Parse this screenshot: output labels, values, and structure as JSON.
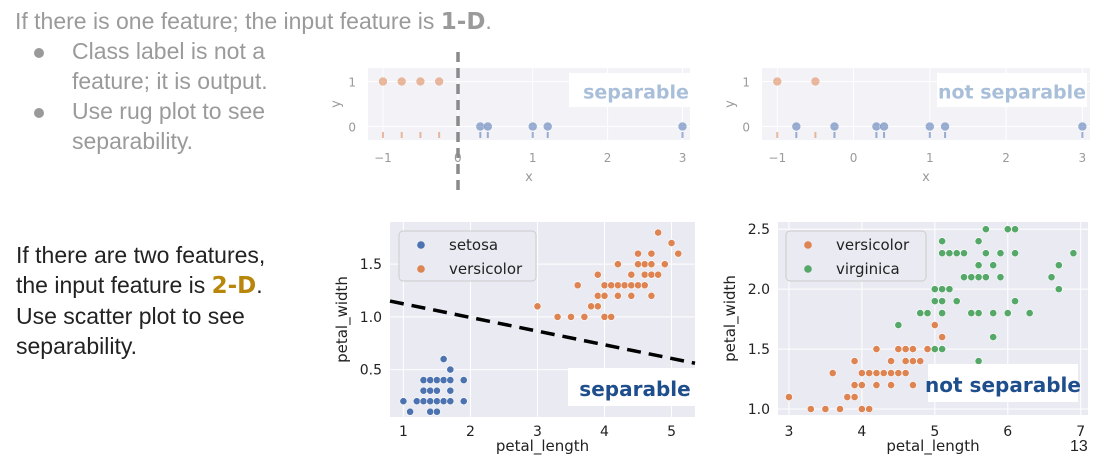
{
  "text": {
    "line1_prefix": "If there is one feature; the input feature is ",
    "line1_highlight": "1-D",
    "line1_suffix": ".",
    "bullets": [
      "Class label is not a feature; it is output.",
      "Use rug plot to see separability."
    ],
    "two_line_a": "If there are two features,",
    "two_line_b_prefix": "the input feature is ",
    "two_line_b_highlight": "2-D",
    "two_line_b_suffix": ".",
    "two_line_c": "Use scatter plot to see",
    "two_line_d": "separability.",
    "page_number": "13"
  },
  "colors": {
    "blue": "#4c72b0",
    "orange": "#dd8452",
    "green": "#55a868",
    "panel_bg": "#eaeaf2",
    "label_blue": "#1f4e8c"
  },
  "chart_data": [
    {
      "type": "scatter",
      "xlabel": "x",
      "ylabel": "y",
      "xlim": [
        -1.2,
        3.1
      ],
      "ylim": [
        -0.3,
        1.3
      ],
      "xticks": [
        "−1",
        "0",
        "1",
        "2",
        "3"
      ],
      "yticks": [
        "0",
        "1"
      ],
      "annotation": "separable",
      "rug": true,
      "series": [
        {
          "color": "orange",
          "points": [
            [
              -1,
              1
            ],
            [
              -0.75,
              1
            ],
            [
              -0.5,
              1
            ],
            [
              -0.25,
              1
            ]
          ]
        },
        {
          "color": "blue",
          "points": [
            [
              0.3,
              0
            ],
            [
              0.4,
              0
            ],
            [
              1.0,
              0
            ],
            [
              1.2,
              0
            ],
            [
              3.0,
              0
            ]
          ]
        }
      ]
    },
    {
      "type": "scatter",
      "xlabel": "x",
      "ylabel": "y",
      "xlim": [
        -1.2,
        3.1
      ],
      "ylim": [
        -0.3,
        1.3
      ],
      "xticks": [
        "−1",
        "0",
        "1",
        "2",
        "3"
      ],
      "yticks": [
        "0",
        "1"
      ],
      "annotation": "not separable",
      "rug": true,
      "series": [
        {
          "color": "orange",
          "points": [
            [
              -1,
              1
            ],
            [
              -0.5,
              1
            ]
          ]
        },
        {
          "color": "blue",
          "points": [
            [
              -0.75,
              0
            ],
            [
              -0.25,
              0
            ],
            [
              0.3,
              0
            ],
            [
              0.4,
              0
            ],
            [
              1.0,
              0
            ],
            [
              1.2,
              0
            ],
            [
              3.0,
              0
            ]
          ]
        }
      ]
    },
    {
      "type": "scatter",
      "xlabel": "petal_length",
      "ylabel": "petal_width",
      "xlim": [
        0.8,
        5.35
      ],
      "ylim": [
        0.05,
        1.9
      ],
      "xticks": [
        "1",
        "2",
        "3",
        "4",
        "5"
      ],
      "yticks": [
        "0.5",
        "1.0",
        "1.5"
      ],
      "legend": "top-left",
      "annotation": "separable",
      "decision_line": [
        [
          0.8,
          1.15
        ],
        [
          5.35,
          0.56
        ]
      ],
      "series": [
        {
          "name": "setosa",
          "color": "blue",
          "points": [
            [
              1.0,
              0.2
            ],
            [
              1.1,
              0.1
            ],
            [
              1.2,
              0.2
            ],
            [
              1.3,
              0.2
            ],
            [
              1.3,
              0.3
            ],
            [
              1.3,
              0.4
            ],
            [
              1.4,
              0.1
            ],
            [
              1.4,
              0.2
            ],
            [
              1.4,
              0.3
            ],
            [
              1.4,
              0.4
            ],
            [
              1.5,
              0.1
            ],
            [
              1.5,
              0.2
            ],
            [
              1.5,
              0.3
            ],
            [
              1.5,
              0.4
            ],
            [
              1.6,
              0.2
            ],
            [
              1.6,
              0.4
            ],
            [
              1.6,
              0.6
            ],
            [
              1.7,
              0.2
            ],
            [
              1.7,
              0.3
            ],
            [
              1.7,
              0.4
            ],
            [
              1.7,
              0.5
            ],
            [
              1.9,
              0.2
            ],
            [
              1.9,
              0.4
            ]
          ]
        },
        {
          "name": "versicolor",
          "color": "orange",
          "points": [
            [
              3.0,
              1.1
            ],
            [
              3.3,
              1.0
            ],
            [
              3.5,
              1.0
            ],
            [
              3.6,
              1.3
            ],
            [
              3.7,
              1.0
            ],
            [
              3.8,
              1.1
            ],
            [
              3.9,
              1.1
            ],
            [
              3.9,
              1.2
            ],
            [
              3.9,
              1.4
            ],
            [
              4.0,
              1.0
            ],
            [
              4.0,
              1.2
            ],
            [
              4.0,
              1.3
            ],
            [
              4.1,
              1.0
            ],
            [
              4.1,
              1.3
            ],
            [
              4.2,
              1.2
            ],
            [
              4.2,
              1.3
            ],
            [
              4.2,
              1.5
            ],
            [
              4.3,
              1.3
            ],
            [
              4.4,
              1.2
            ],
            [
              4.4,
              1.3
            ],
            [
              4.4,
              1.4
            ],
            [
              4.5,
              1.3
            ],
            [
              4.5,
              1.5
            ],
            [
              4.5,
              1.6
            ],
            [
              4.6,
              1.3
            ],
            [
              4.6,
              1.4
            ],
            [
              4.6,
              1.5
            ],
            [
              4.7,
              1.2
            ],
            [
              4.7,
              1.4
            ],
            [
              4.7,
              1.5
            ],
            [
              4.7,
              1.6
            ],
            [
              4.8,
              1.4
            ],
            [
              4.8,
              1.8
            ],
            [
              4.9,
              1.5
            ],
            [
              5.0,
              1.7
            ],
            [
              5.1,
              1.6
            ]
          ]
        }
      ]
    },
    {
      "type": "scatter",
      "xlabel": "petal_length",
      "ylabel": "petal_width",
      "xlim": [
        2.85,
        7.1
      ],
      "ylim": [
        0.95,
        2.56
      ],
      "xticks": [
        "3",
        "4",
        "5",
        "6",
        "7"
      ],
      "yticks": [
        "1.0",
        "1.5",
        "2.0",
        "2.5"
      ],
      "legend": "top-left",
      "annotation": "not separable",
      "series": [
        {
          "name": "versicolor",
          "color": "orange",
          "points": [
            [
              3.0,
              1.1
            ],
            [
              3.3,
              1.0
            ],
            [
              3.5,
              1.0
            ],
            [
              3.6,
              1.3
            ],
            [
              3.7,
              1.0
            ],
            [
              3.8,
              1.1
            ],
            [
              3.9,
              1.1
            ],
            [
              3.9,
              1.2
            ],
            [
              3.9,
              1.4
            ],
            [
              4.0,
              1.0
            ],
            [
              4.0,
              1.2
            ],
            [
              4.0,
              1.3
            ],
            [
              4.1,
              1.0
            ],
            [
              4.1,
              1.3
            ],
            [
              4.2,
              1.2
            ],
            [
              4.2,
              1.3
            ],
            [
              4.2,
              1.5
            ],
            [
              4.3,
              1.3
            ],
            [
              4.4,
              1.2
            ],
            [
              4.4,
              1.3
            ],
            [
              4.4,
              1.4
            ],
            [
              4.5,
              1.3
            ],
            [
              4.5,
              1.5
            ],
            [
              4.6,
              1.3
            ],
            [
              4.6,
              1.4
            ],
            [
              4.6,
              1.5
            ],
            [
              4.7,
              1.2
            ],
            [
              4.7,
              1.4
            ],
            [
              4.7,
              1.5
            ],
            [
              4.8,
              1.4
            ],
            [
              4.8,
              1.8
            ],
            [
              4.9,
              1.5
            ],
            [
              5.0,
              1.7
            ],
            [
              5.1,
              1.6
            ]
          ]
        },
        {
          "name": "virginica",
          "color": "green",
          "points": [
            [
              4.5,
              1.7
            ],
            [
              4.8,
              1.8
            ],
            [
              4.9,
              1.8
            ],
            [
              5.0,
              1.5
            ],
            [
              5.0,
              1.9
            ],
            [
              5.0,
              2.0
            ],
            [
              5.1,
              1.5
            ],
            [
              5.1,
              1.8
            ],
            [
              5.1,
              1.9
            ],
            [
              5.1,
              2.0
            ],
            [
              5.1,
              2.3
            ],
            [
              5.1,
              2.4
            ],
            [
              5.2,
              2.0
            ],
            [
              5.2,
              2.3
            ],
            [
              5.3,
              1.9
            ],
            [
              5.3,
              2.3
            ],
            [
              5.4,
              2.1
            ],
            [
              5.4,
              2.3
            ],
            [
              5.5,
              1.8
            ],
            [
              5.5,
              2.1
            ],
            [
              5.6,
              1.4
            ],
            [
              5.6,
              1.8
            ],
            [
              5.6,
              2.1
            ],
            [
              5.6,
              2.2
            ],
            [
              5.6,
              2.4
            ],
            [
              5.7,
              2.1
            ],
            [
              5.7,
              2.3
            ],
            [
              5.7,
              2.5
            ],
            [
              5.8,
              1.6
            ],
            [
              5.8,
              1.8
            ],
            [
              5.8,
              2.2
            ],
            [
              5.9,
              2.1
            ],
            [
              5.9,
              2.3
            ],
            [
              6.0,
              1.8
            ],
            [
              6.0,
              2.5
            ],
            [
              6.1,
              1.9
            ],
            [
              6.1,
              2.3
            ],
            [
              6.1,
              2.5
            ],
            [
              6.3,
              1.8
            ],
            [
              6.6,
              2.1
            ],
            [
              6.7,
              2.0
            ],
            [
              6.7,
              2.2
            ],
            [
              6.9,
              2.3
            ]
          ]
        }
      ]
    }
  ]
}
